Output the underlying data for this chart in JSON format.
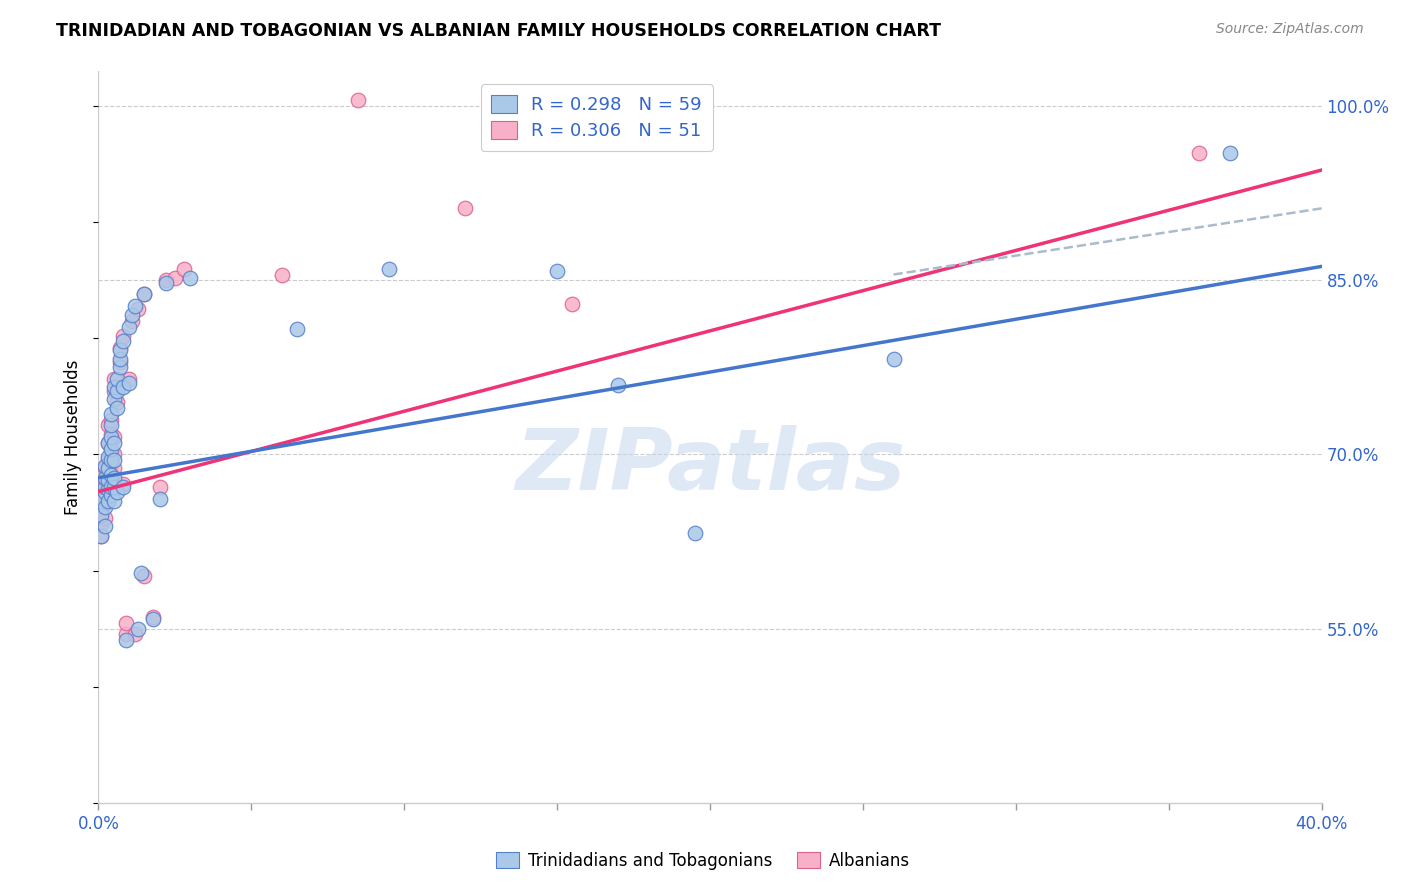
{
  "title": "TRINIDADIAN AND TOBAGONIAN VS ALBANIAN FAMILY HOUSEHOLDS CORRELATION CHART",
  "source": "Source: ZipAtlas.com",
  "ylabel": "Family Households",
  "xlim": [
    0.0,
    0.4
  ],
  "ylim": [
    0.4,
    1.03
  ],
  "xticks": [
    0.0,
    0.05,
    0.1,
    0.15,
    0.2,
    0.25,
    0.3,
    0.35,
    0.4
  ],
  "yticks_right": [
    0.55,
    0.7,
    0.85,
    1.0
  ],
  "ytick_labels_right": [
    "55.0%",
    "70.0%",
    "85.0%",
    "100.0%"
  ],
  "watermark": "ZIPatlas",
  "blue_fill": "#aac8e8",
  "blue_edge": "#5580cc",
  "pink_fill": "#f8b0c8",
  "pink_edge": "#dd6090",
  "blue_line": "#4477cc",
  "pink_line": "#ee3377",
  "dash_color": "#aabbcc",
  "scatter_blue": [
    [
      0.001,
      0.63
    ],
    [
      0.001,
      0.648
    ],
    [
      0.001,
      0.66
    ],
    [
      0.002,
      0.638
    ],
    [
      0.002,
      0.655
    ],
    [
      0.002,
      0.668
    ],
    [
      0.002,
      0.672
    ],
    [
      0.002,
      0.68
    ],
    [
      0.002,
      0.69
    ],
    [
      0.003,
      0.66
    ],
    [
      0.003,
      0.67
    ],
    [
      0.003,
      0.678
    ],
    [
      0.003,
      0.688
    ],
    [
      0.003,
      0.698
    ],
    [
      0.003,
      0.71
    ],
    [
      0.004,
      0.665
    ],
    [
      0.004,
      0.672
    ],
    [
      0.004,
      0.682
    ],
    [
      0.004,
      0.695
    ],
    [
      0.004,
      0.705
    ],
    [
      0.004,
      0.715
    ],
    [
      0.004,
      0.725
    ],
    [
      0.004,
      0.735
    ],
    [
      0.005,
      0.66
    ],
    [
      0.005,
      0.672
    ],
    [
      0.005,
      0.68
    ],
    [
      0.005,
      0.695
    ],
    [
      0.005,
      0.71
    ],
    [
      0.005,
      0.748
    ],
    [
      0.005,
      0.758
    ],
    [
      0.006,
      0.668
    ],
    [
      0.006,
      0.74
    ],
    [
      0.006,
      0.755
    ],
    [
      0.006,
      0.765
    ],
    [
      0.007,
      0.775
    ],
    [
      0.007,
      0.782
    ],
    [
      0.007,
      0.79
    ],
    [
      0.008,
      0.672
    ],
    [
      0.008,
      0.758
    ],
    [
      0.008,
      0.798
    ],
    [
      0.009,
      0.54
    ],
    [
      0.01,
      0.762
    ],
    [
      0.01,
      0.81
    ],
    [
      0.011,
      0.82
    ],
    [
      0.012,
      0.828
    ],
    [
      0.013,
      0.55
    ],
    [
      0.014,
      0.598
    ],
    [
      0.015,
      0.838
    ],
    [
      0.018,
      0.558
    ],
    [
      0.02,
      0.662
    ],
    [
      0.022,
      0.848
    ],
    [
      0.03,
      0.852
    ],
    [
      0.065,
      0.808
    ],
    [
      0.095,
      0.86
    ],
    [
      0.15,
      0.858
    ],
    [
      0.17,
      0.76
    ],
    [
      0.195,
      0.632
    ],
    [
      0.26,
      0.782
    ],
    [
      0.37,
      0.96
    ]
  ],
  "scatter_pink": [
    [
      0.001,
      0.63
    ],
    [
      0.001,
      0.64
    ],
    [
      0.001,
      0.652
    ],
    [
      0.001,
      0.66
    ],
    [
      0.002,
      0.645
    ],
    [
      0.002,
      0.658
    ],
    [
      0.002,
      0.668
    ],
    [
      0.002,
      0.678
    ],
    [
      0.002,
      0.688
    ],
    [
      0.003,
      0.665
    ],
    [
      0.003,
      0.675
    ],
    [
      0.003,
      0.685
    ],
    [
      0.003,
      0.695
    ],
    [
      0.003,
      0.71
    ],
    [
      0.003,
      0.725
    ],
    [
      0.004,
      0.67
    ],
    [
      0.004,
      0.68
    ],
    [
      0.004,
      0.692
    ],
    [
      0.004,
      0.702
    ],
    [
      0.004,
      0.718
    ],
    [
      0.004,
      0.73
    ],
    [
      0.005,
      0.672
    ],
    [
      0.005,
      0.688
    ],
    [
      0.005,
      0.7
    ],
    [
      0.005,
      0.715
    ],
    [
      0.005,
      0.755
    ],
    [
      0.005,
      0.765
    ],
    [
      0.006,
      0.745
    ],
    [
      0.006,
      0.758
    ],
    [
      0.007,
      0.78
    ],
    [
      0.007,
      0.792
    ],
    [
      0.008,
      0.675
    ],
    [
      0.008,
      0.802
    ],
    [
      0.009,
      0.545
    ],
    [
      0.009,
      0.555
    ],
    [
      0.01,
      0.765
    ],
    [
      0.011,
      0.815
    ],
    [
      0.012,
      0.545
    ],
    [
      0.013,
      0.825
    ],
    [
      0.015,
      0.595
    ],
    [
      0.015,
      0.838
    ],
    [
      0.018,
      0.56
    ],
    [
      0.02,
      0.672
    ],
    [
      0.022,
      0.85
    ],
    [
      0.025,
      0.852
    ],
    [
      0.028,
      0.86
    ],
    [
      0.06,
      0.855
    ],
    [
      0.085,
      1.005
    ],
    [
      0.12,
      0.912
    ],
    [
      0.155,
      0.83
    ],
    [
      0.36,
      0.96
    ]
  ],
  "blue_line_pts": [
    [
      0.0,
      0.68
    ],
    [
      0.4,
      0.862
    ]
  ],
  "pink_line_pts": [
    [
      0.0,
      0.668
    ],
    [
      0.4,
      0.945
    ]
  ],
  "dash_line_pts": [
    [
      0.26,
      0.855
    ],
    [
      0.4,
      0.912
    ]
  ],
  "legend1_label": "Trinidadians and Tobagonians",
  "legend2_label": "Albanians"
}
